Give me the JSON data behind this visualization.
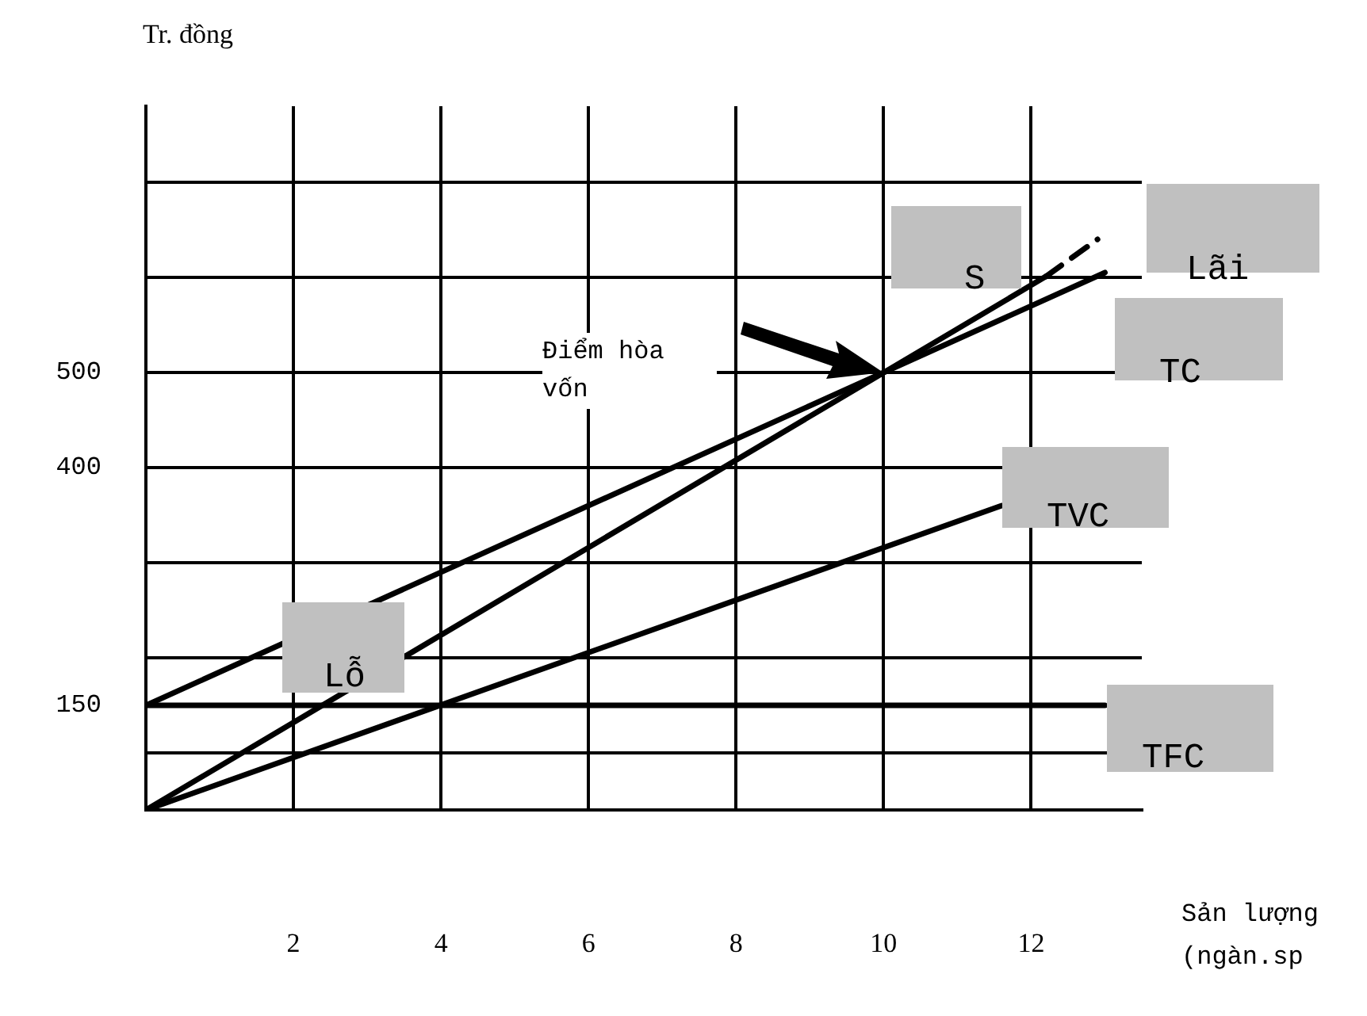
{
  "chart_data": {
    "type": "line",
    "xlabel": "Sản lượng (ngàn.sp",
    "ylabel": "Tr. đồng",
    "xlim": [
      0,
      13.5
    ],
    "ylim": [
      40,
      780
    ],
    "xticks": [
      2,
      4,
      6,
      8,
      10,
      12
    ],
    "yticks": [
      {
        "value": 100,
        "label": null
      },
      150,
      {
        "value": 200,
        "label": null
      },
      {
        "value": 300,
        "label": null
      },
      400,
      500,
      {
        "value": 600,
        "label": null
      },
      {
        "value": 700,
        "label": null
      }
    ],
    "grid": true,
    "legend": false,
    "marker": "none",
    "series": [
      {
        "name": "TFC",
        "color": "#000000",
        "x": [
          0,
          13
        ],
        "values": [
          150,
          150
        ]
      },
      {
        "name": "TVC",
        "color": "#000000",
        "x": [
          0,
          11.6
        ],
        "values": [
          40,
          360
        ]
      },
      {
        "name": "TC",
        "color": "#000000",
        "x": [
          0,
          13
        ],
        "values": [
          150,
          605
        ]
      },
      {
        "name": "S",
        "color": "#000000",
        "x": [
          0,
          12.2
        ],
        "values": [
          40,
          601
        ]
      },
      {
        "color": "#000000",
        "x": [
          12.2,
          12.9
        ],
        "values": [
          601,
          640
        ],
        "line_style": "dashed"
      }
    ],
    "annotations": [
      "Lãi",
      "Lỗ",
      "Điểm hòa vốn"
    ]
  }
}
